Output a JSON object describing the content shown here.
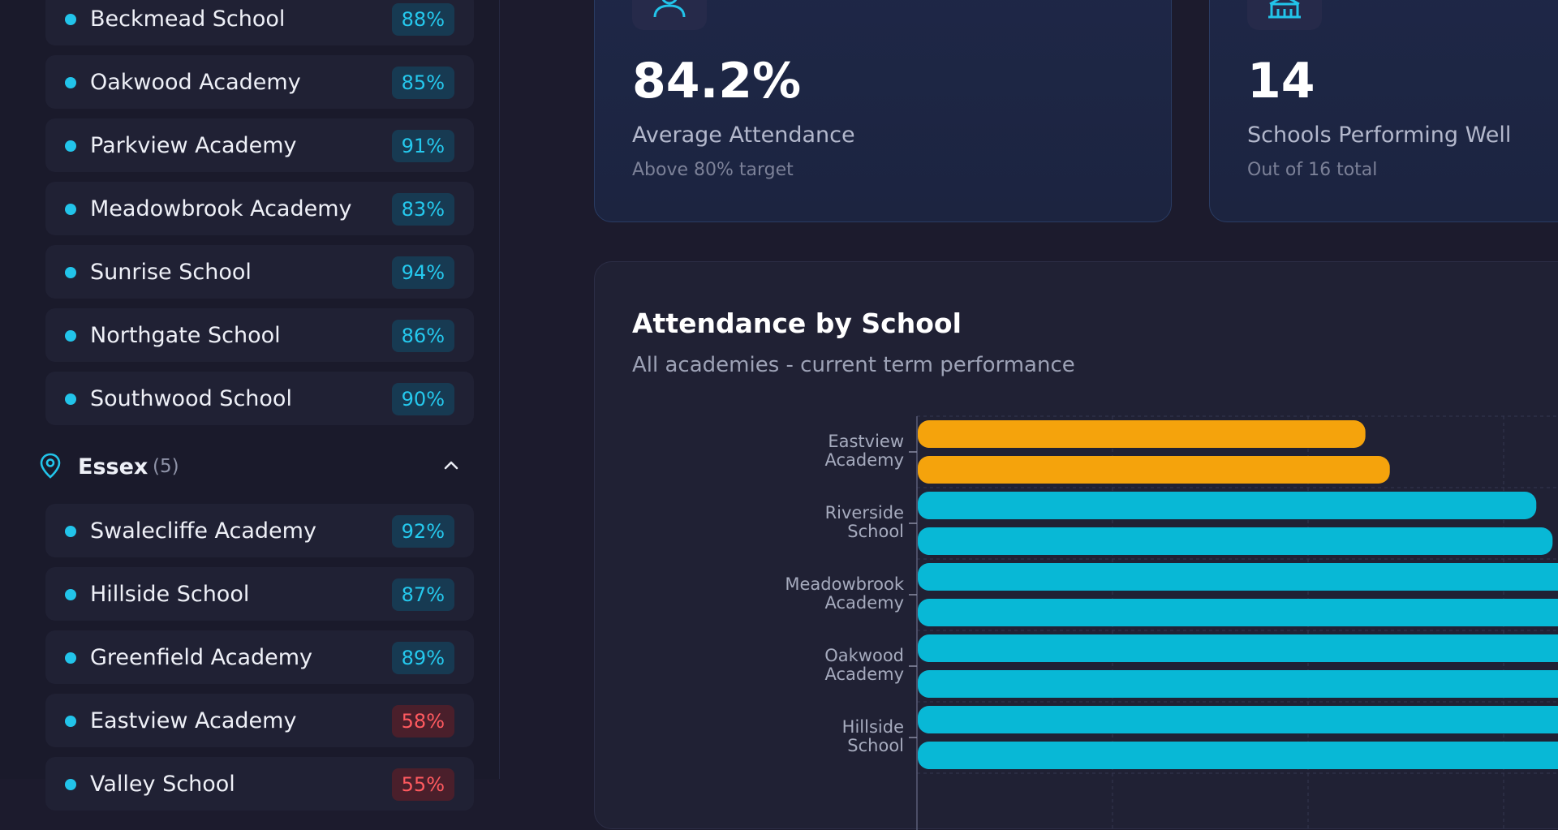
{
  "sidebar": {
    "schools_top": [
      {
        "name": "Beckmead School",
        "pct": "88%",
        "status": "ok"
      },
      {
        "name": "Oakwood Academy",
        "pct": "85%",
        "status": "ok"
      },
      {
        "name": "Parkview Academy",
        "pct": "91%",
        "status": "ok"
      },
      {
        "name": "Meadowbrook Academy",
        "pct": "83%",
        "status": "ok"
      },
      {
        "name": "Sunrise School",
        "pct": "94%",
        "status": "ok"
      },
      {
        "name": "Northgate School",
        "pct": "86%",
        "status": "ok"
      },
      {
        "name": "Southwood School",
        "pct": "90%",
        "status": "ok"
      }
    ],
    "region": {
      "name": "Essex",
      "count": "(5)",
      "icon": "map-pin-icon",
      "toggle_icon": "chevron-up-icon"
    },
    "schools_region": [
      {
        "name": "Swalecliffe Academy",
        "pct": "92%",
        "status": "ok"
      },
      {
        "name": "Hillside School",
        "pct": "87%",
        "status": "ok"
      },
      {
        "name": "Greenfield Academy",
        "pct": "89%",
        "status": "ok"
      },
      {
        "name": "Eastview Academy",
        "pct": "58%",
        "status": "low"
      },
      {
        "name": "Valley School",
        "pct": "55%",
        "status": "low"
      }
    ]
  },
  "cards": [
    {
      "value": "84.2%",
      "label": "Average Attendance",
      "sub": "Above 80% target",
      "icon": "users-icon"
    },
    {
      "value": "14",
      "label": "Schools Performing Well",
      "sub": "Out of 16 total",
      "icon": "school-building-icon"
    }
  ],
  "colors": {
    "accent": "#22c4ea",
    "bar_good": "#08b8d6",
    "bar_warn": "#f5a30c",
    "badge_low": "#ff5a5f"
  },
  "chart_data": {
    "type": "bar",
    "orientation": "horizontal",
    "title": "Attendance by School",
    "subtitle": "All academies - current term performance",
    "categories": [
      "Eastview Academy",
      "Riverside School",
      "Meadowbrook Academy",
      "Oakwood Academy",
      "Hillside School"
    ],
    "series": [
      {
        "values": [
          55,
          76,
          82,
          84,
          86
        ]
      },
      {
        "values": [
          58,
          78,
          83,
          85,
          87
        ]
      }
    ],
    "warn_threshold": 60,
    "xlim": [
      0,
      100
    ],
    "grid": true
  }
}
